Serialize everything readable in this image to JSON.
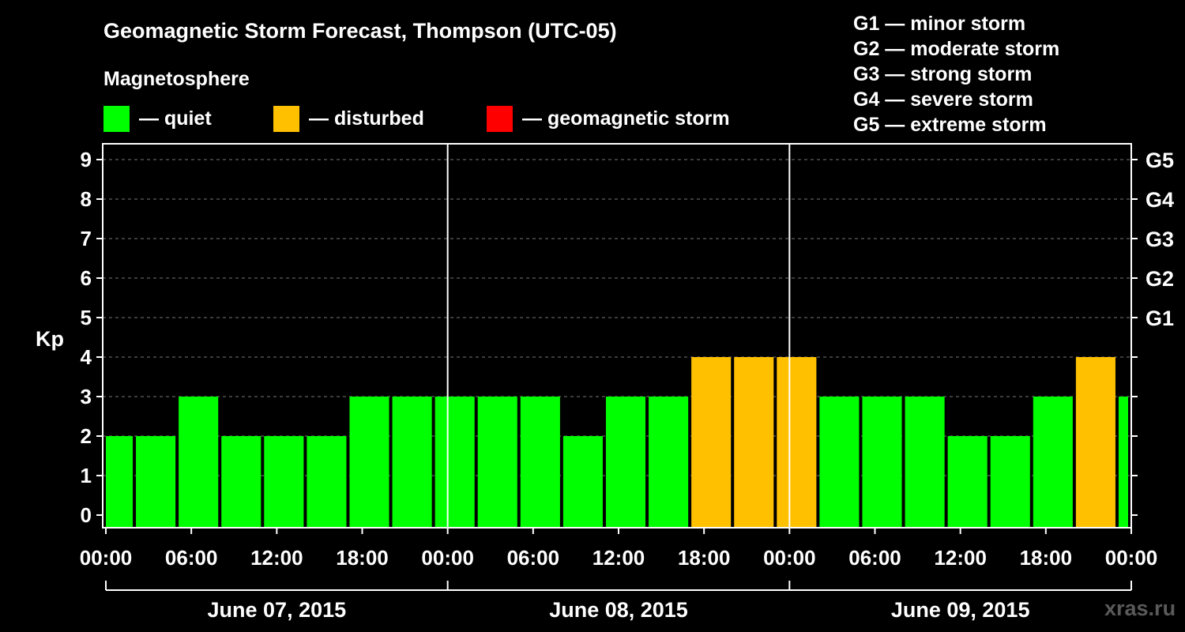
{
  "chart_data": {
    "type": "bar",
    "title": "Geomagnetic Storm Forecast, Thompson (UTC-05)",
    "ylabel": "Kp",
    "ylim": [
      0,
      9
    ],
    "y_ticks": [
      "0",
      "1",
      "2",
      "3",
      "4",
      "5",
      "6",
      "7",
      "8",
      "9"
    ],
    "right_axis_labels": [
      {
        "kp": 5,
        "label": "G1"
      },
      {
        "kp": 6,
        "label": "G2"
      },
      {
        "kp": 7,
        "label": "G3"
      },
      {
        "kp": 8,
        "label": "G4"
      },
      {
        "kp": 9,
        "label": "G5"
      }
    ],
    "x_range_hours": [
      0,
      72
    ],
    "x_tick_labels": [
      "00:00",
      "06:00",
      "12:00",
      "18:00",
      "00:00",
      "06:00",
      "12:00",
      "18:00",
      "00:00",
      "06:00",
      "12:00",
      "18:00",
      "00:00"
    ],
    "x_tick_step_hours": 6,
    "day_labels": [
      "June 07, 2015",
      "June 08, 2015",
      "June 09, 2015"
    ],
    "day_separator_hours": [
      24,
      48
    ],
    "bar_start_hours": -1,
    "bar_width_hours": 3,
    "values": [
      2,
      2,
      3,
      2,
      2,
      2,
      3,
      3,
      3,
      3,
      3,
      2,
      3,
      3,
      4,
      4,
      4,
      3,
      3,
      3,
      2,
      2,
      3,
      4,
      3
    ],
    "status": [
      "quiet",
      "quiet",
      "quiet",
      "quiet",
      "quiet",
      "quiet",
      "quiet",
      "quiet",
      "quiet",
      "quiet",
      "quiet",
      "quiet",
      "quiet",
      "quiet",
      "disturbed",
      "disturbed",
      "disturbed",
      "quiet",
      "quiet",
      "quiet",
      "quiet",
      "quiet",
      "quiet",
      "disturbed",
      "quiet"
    ],
    "colors": {
      "quiet": "#00ff00",
      "disturbed": "#ffc000",
      "storm": "#ff0000"
    },
    "grid": "dashed horizontal at each Kp",
    "legend": {
      "heading": "Magnetosphere",
      "items": [
        {
          "key": "quiet",
          "color": "#00ff00",
          "label": "— quiet"
        },
        {
          "key": "disturbed",
          "color": "#ffc000",
          "label": "— disturbed"
        },
        {
          "key": "storm",
          "color": "#ff0000",
          "label": "— geomagnetic storm"
        }
      ]
    },
    "g_scale": [
      "G1 — minor storm",
      "G2 — moderate storm",
      "G3 — strong storm",
      "G4 — severe storm",
      "G5 — extreme storm"
    ]
  },
  "watermark": "xras.ru"
}
